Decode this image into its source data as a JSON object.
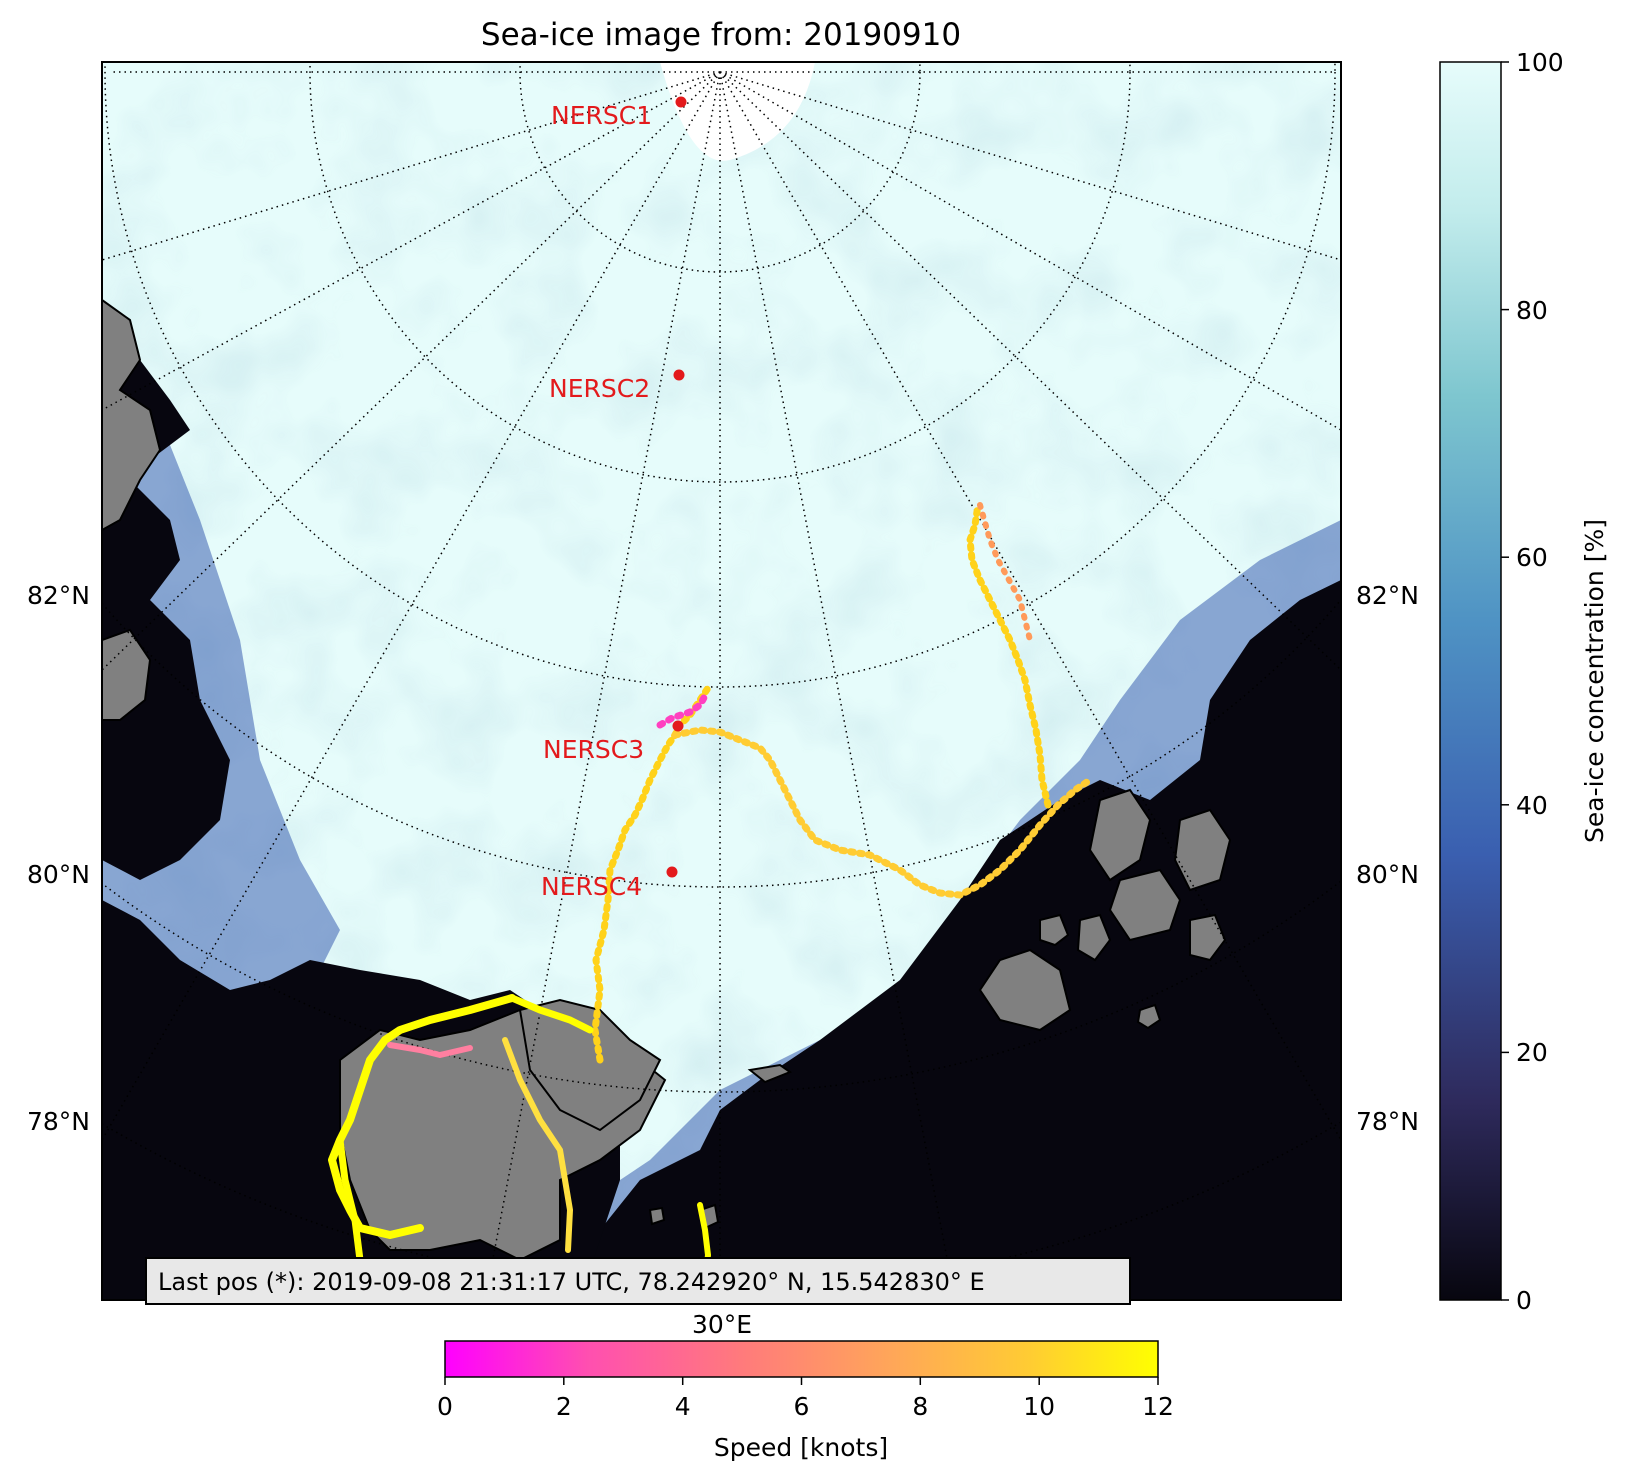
{
  "title": "Sea-ice image from: 20190910",
  "map": {
    "lat_labels_left": [
      {
        "text": "82°N",
        "lat": 82
      },
      {
        "text": "80°N",
        "lat": 80
      },
      {
        "text": "78°N",
        "lat": 78
      }
    ],
    "lat_labels_right": [
      {
        "text": "82°N",
        "lat": 82
      },
      {
        "text": "80°N",
        "lat": 80
      },
      {
        "text": "78°N",
        "lat": 78
      }
    ],
    "lon_label_bottom": "30°E",
    "graticule_style": "dotted",
    "colors": {
      "ice_full": "#e6fcfb",
      "ice_mid": "#4f93c4",
      "ocean": "#07060f",
      "land": "#808080",
      "coastline": "#000000",
      "station": "#e31a1c"
    }
  },
  "stations": [
    {
      "name": "NERSC1"
    },
    {
      "name": "NERSC2"
    },
    {
      "name": "NERSC3"
    },
    {
      "name": "NERSC4"
    }
  ],
  "last_position": "Last pos (*): 2019-09-08 21:31:17 UTC, 78.242920° N, 15.542830° E",
  "colorbar_ice": {
    "label": "Sea-ice concentration [%]",
    "ticks": [
      "0",
      "20",
      "40",
      "60",
      "80",
      "100"
    ],
    "min": 0,
    "max": 100,
    "colormap": [
      "#07060f",
      "#2e2a5c",
      "#3a5fb0",
      "#4f93c4",
      "#7ec6cf",
      "#c2ecec",
      "#e6fcfb"
    ]
  },
  "colorbar_speed": {
    "label": "Speed [knots]",
    "ticks": [
      "0",
      "2",
      "4",
      "6",
      "8",
      "10",
      "12"
    ],
    "min": 0,
    "max": 12,
    "colormap": [
      "#ff00ff",
      "#ff4fb0",
      "#ff7b7b",
      "#ffa55a",
      "#ffcc33",
      "#ffff00"
    ]
  }
}
